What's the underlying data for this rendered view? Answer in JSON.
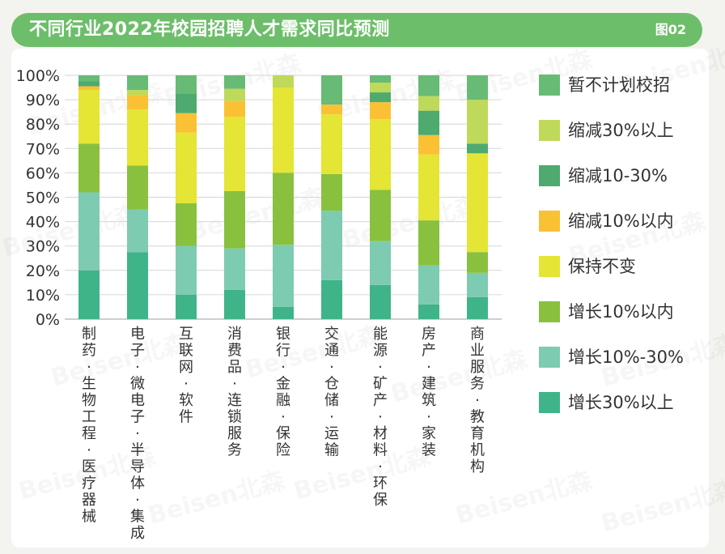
{
  "header": {
    "title": "不同行业2022年校园招聘人才需求同比预测",
    "tag": "图02"
  },
  "watermark": {
    "text": "Beisen北森"
  },
  "chart_data": {
    "type": "bar",
    "stacked": true,
    "ylim": [
      0,
      100
    ],
    "yticks": [
      "0%",
      "10%",
      "20%",
      "30%",
      "40%",
      "50%",
      "60%",
      "70%",
      "80%",
      "90%",
      "100%"
    ],
    "grid": "horizontal",
    "legend_position": "right",
    "categories": [
      "制药·生物工程·医疗器械",
      "电子·微电子·半导体·集成",
      "互联网·软件",
      "消费品·连锁服务",
      "银行·金融·保险",
      "交通·仓储·运输",
      "能源·矿产·材料·环保",
      "房产·建筑·家装",
      "商业服务·教育机构"
    ],
    "series": [
      {
        "name": "增长30%以上",
        "color": "#3fb489",
        "values": [
          20,
          27.5,
          10,
          12,
          5,
          16,
          14,
          6,
          9
        ]
      },
      {
        "name": "增长10%-30%",
        "color": "#7dcbb0",
        "values": [
          32,
          17.5,
          20,
          17,
          25.5,
          28.5,
          18,
          16,
          10
        ]
      },
      {
        "name": "增长10%以内",
        "color": "#89c13e",
        "values": [
          20,
          18,
          17.5,
          23.5,
          29.5,
          15,
          21,
          18.5,
          8.5
        ]
      },
      {
        "name": "保持不变",
        "color": "#e4e534",
        "values": [
          22,
          23,
          29,
          30.5,
          35,
          24.5,
          29,
          27,
          40.5
        ]
      },
      {
        "name": "缩减10%以内",
        "color": "#fbc134",
        "values": [
          1.5,
          6,
          8,
          6.5,
          0,
          4,
          7,
          8,
          0
        ]
      },
      {
        "name": "缩减10-30%",
        "color": "#4eaa6e",
        "values": [
          2,
          0,
          8,
          0,
          0,
          0,
          4,
          10,
          4
        ]
      },
      {
        "name": "缩减30%以上",
        "color": "#bfd95a",
        "values": [
          0,
          2,
          0,
          5,
          5,
          0,
          4,
          6,
          18
        ]
      },
      {
        "name": "暂不计划校招",
        "color": "#67bb75",
        "values": [
          2.5,
          6,
          7.5,
          5.5,
          0,
          12,
          3,
          8.5,
          10
        ]
      }
    ]
  }
}
